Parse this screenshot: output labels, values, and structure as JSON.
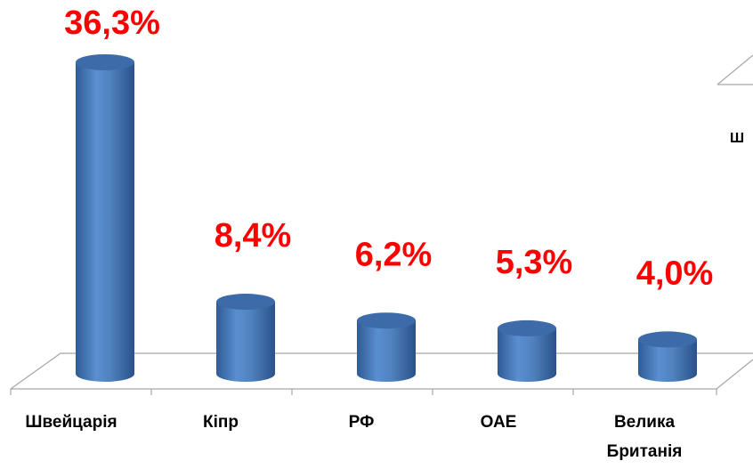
{
  "chart_data": {
    "type": "bar3d",
    "categories": [
      "Швейцарія",
      "Кіпр",
      "РФ",
      "ОАЕ",
      "Велика Британія"
    ],
    "values": [
      36.3,
      8.4,
      6.2,
      5.3,
      4.0
    ],
    "value_labels": [
      "36,3%",
      "8,4%",
      "6,2%",
      "5,3%",
      "4,0%"
    ],
    "color": "#4f81bd",
    "annotations": [
      "Ш"
    ]
  }
}
